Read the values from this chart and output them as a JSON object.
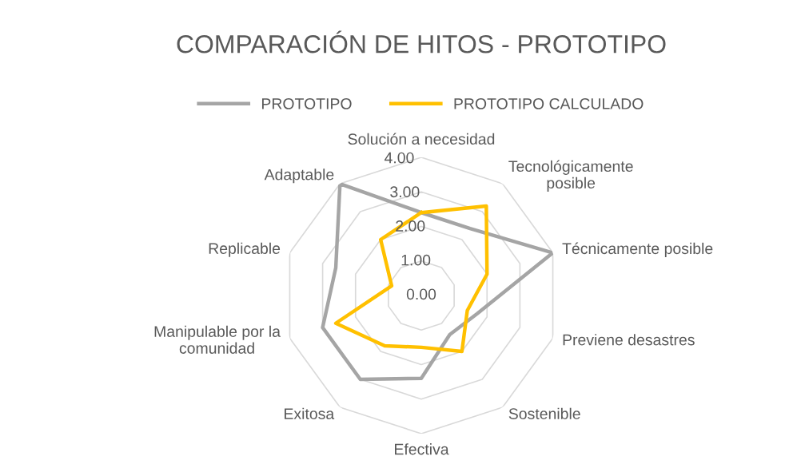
{
  "chart_data": {
    "type": "radar",
    "title": "COMPARACIÓN DE HITOS - PROTOTIPO",
    "categories": [
      "Solución a necesidad",
      "Tecnológicamente\nposible",
      "Técnicamente posible",
      "Previene desastres",
      "Sostenible",
      "Efectiva",
      "Exitosa",
      "Manipulable por la\ncomunidad",
      "Replicable",
      "Adaptable"
    ],
    "series": [
      {
        "name": "PROTOTIPO",
        "color": "#a5a5a5",
        "values": [
          2.4,
          2.4,
          4.0,
          1.7,
          1.4,
          2.4,
          3.0,
          3.0,
          2.6,
          4.0
        ]
      },
      {
        "name": "PROTOTIPO CALCULADO",
        "color": "#ffc000",
        "values": [
          2.4,
          3.2,
          2.0,
          1.4,
          2.0,
          1.5,
          1.8,
          2.6,
          0.9,
          2.0
        ]
      }
    ],
    "ylim": [
      0,
      4
    ],
    "yticks": [
      {
        "value": 0,
        "label": "0.00"
      },
      {
        "value": 1,
        "label": "1.00"
      },
      {
        "value": 2,
        "label": "2.00"
      },
      {
        "value": 3,
        "label": "3.00"
      },
      {
        "value": 4,
        "label": "4.00"
      }
    ],
    "grid": true,
    "legend": "top",
    "marker": "none",
    "line_style": "solid"
  }
}
